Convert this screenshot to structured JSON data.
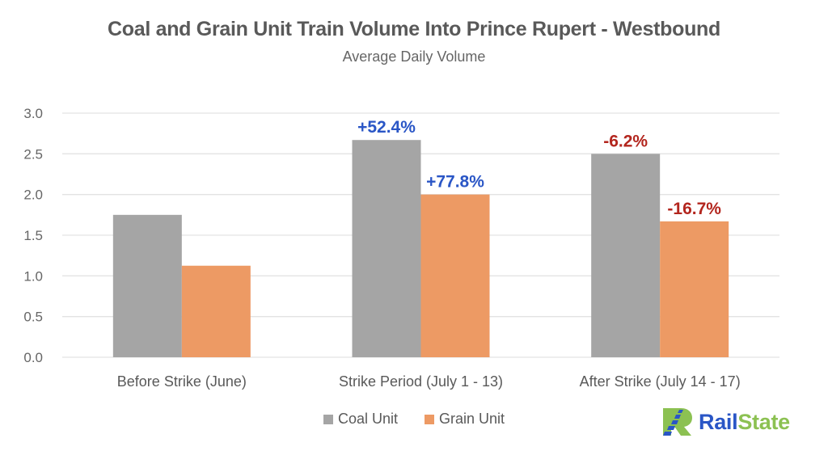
{
  "colors": {
    "coal": "#a5a5a5",
    "grain": "#ed9a64",
    "positive": "#2a56c6",
    "negative": "#b3261e",
    "grid": "#e3e3e3",
    "logo_blue": "#2a56c6",
    "logo_green": "#8cc152"
  },
  "chart_data": {
    "type": "bar",
    "title": "Coal and Grain Unit Train Volume Into Prince Rupert - Westbound",
    "subtitle": "Average Daily Volume",
    "xlabel": "",
    "ylabel": "",
    "ylim": [
      0,
      3.0
    ],
    "yticks": [
      "0.0",
      "0.5",
      "1.0",
      "1.5",
      "2.0",
      "2.5",
      "3.0"
    ],
    "ytick_values": [
      0,
      0.5,
      1.0,
      1.5,
      2.0,
      2.5,
      3.0
    ],
    "grid": true,
    "legend_position": "bottom",
    "categories": [
      "Before Strike (June)",
      "Strike Period (July 1 - 13)",
      "After Strike (July 14 - 17)"
    ],
    "series": [
      {
        "name": "Coal Unit",
        "values": [
          1.75,
          2.67,
          2.5
        ],
        "annotations": [
          "",
          "+52.4%",
          "-6.2%"
        ]
      },
      {
        "name": "Grain Unit",
        "values": [
          1.125,
          2.0,
          1.67
        ],
        "annotations": [
          "",
          "+77.8%",
          "-16.7%"
        ]
      }
    ]
  },
  "logo": {
    "part1": "Rail",
    "part2": "State"
  }
}
